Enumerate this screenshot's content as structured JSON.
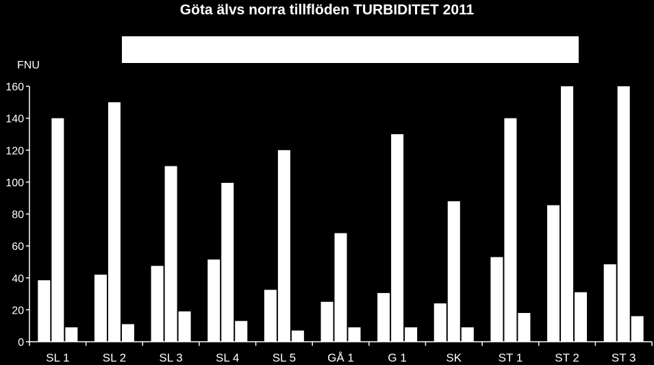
{
  "chart_data": {
    "type": "bar",
    "title": "Göta älvs norra tillflöden TURBIDITET 2011",
    "ylabel": "FNU",
    "xlabel": "",
    "ylim": [
      0,
      160
    ],
    "yticks": [
      0,
      20,
      40,
      60,
      80,
      100,
      120,
      140,
      160
    ],
    "categories": [
      "SL 1",
      "SL 2",
      "SL 3",
      "SL 4",
      "SL 5",
      "GÅ 1",
      "G 1",
      "SK",
      "ST 1",
      "ST 2",
      "ST 3"
    ],
    "series": [
      {
        "values": [
          38.5,
          42,
          47.5,
          51.5,
          32.5,
          25,
          30.5,
          24,
          53,
          85.5,
          48.5
        ]
      },
      {
        "values": [
          140,
          150,
          110,
          99.5,
          120,
          68,
          130,
          88,
          140,
          160,
          160
        ]
      },
      {
        "values": [
          9,
          11,
          19,
          13,
          7,
          9,
          9,
          9,
          18,
          31,
          16
        ]
      }
    ],
    "legend": "top-center",
    "grid": false,
    "colors": {
      "background": "#000000",
      "bars": "#ffffff",
      "axis": "#ffffff"
    }
  }
}
